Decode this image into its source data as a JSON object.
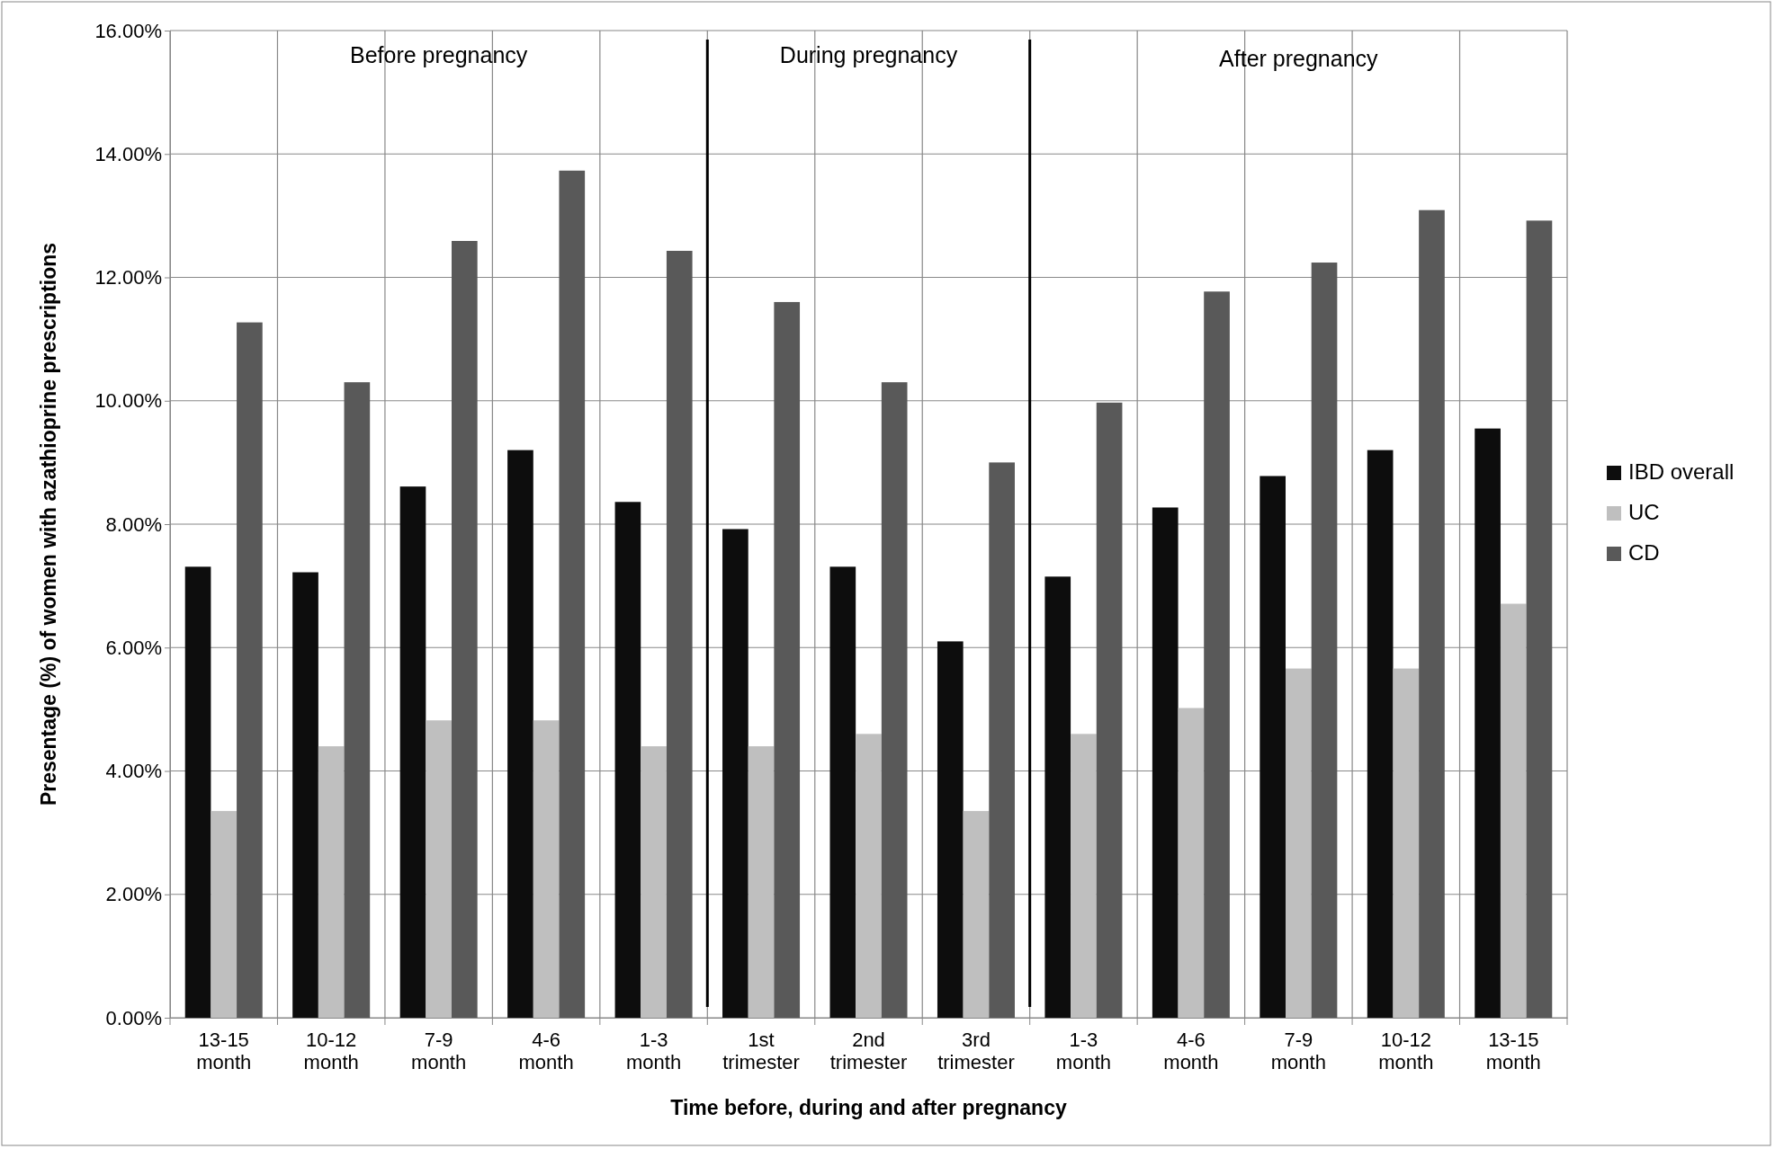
{
  "chart_data": {
    "type": "bar",
    "xlabel": "Time before, during and after pregnancy",
    "ylabel": "Presentage (%) of women with azathioprine prescriptions",
    "categories": [
      "13-15 month",
      "10-12 month",
      "7-9 month",
      "4-6 month",
      "1-3 month",
      "1st trimester",
      "2nd trimester",
      "3rd trimester",
      "1-3 month",
      "4-6 month",
      "7-9 month",
      "10-12 month",
      "13-15 month"
    ],
    "series": [
      {
        "name": "IBD overall",
        "color": "#0d0d0d",
        "values": [
          7.31,
          7.22,
          8.61,
          9.2,
          8.36,
          7.92,
          7.31,
          6.1,
          7.15,
          8.27,
          8.78,
          9.2,
          9.55
        ]
      },
      {
        "name": "UC",
        "color": "#bfbfbf",
        "values": [
          3.35,
          4.4,
          4.82,
          4.82,
          4.4,
          4.4,
          4.6,
          3.35,
          4.6,
          5.02,
          5.66,
          5.66,
          6.71
        ]
      },
      {
        "name": "CD",
        "color": "#595959",
        "values": [
          11.27,
          10.3,
          12.59,
          13.73,
          12.43,
          11.6,
          10.3,
          9.0,
          9.97,
          11.77,
          12.24,
          13.09,
          12.92
        ]
      }
    ],
    "ylim": [
      0,
      16
    ],
    "yticks": [
      {
        "value": 0,
        "label": "0.00%"
      },
      {
        "value": 2,
        "label": "2.00%"
      },
      {
        "value": 4,
        "label": "4.00%"
      },
      {
        "value": 6,
        "label": "6.00%"
      },
      {
        "value": 8,
        "label": "8.00%"
      },
      {
        "value": 10,
        "label": "10.00%"
      },
      {
        "value": 12,
        "label": "12.00%"
      },
      {
        "value": 14,
        "label": "14.00%"
      },
      {
        "value": 16,
        "label": "16.00%"
      }
    ],
    "annotations": [
      "Before pregnancy",
      "During pregnancy",
      "After pregnancy"
    ],
    "grid": true,
    "legend": "right"
  }
}
